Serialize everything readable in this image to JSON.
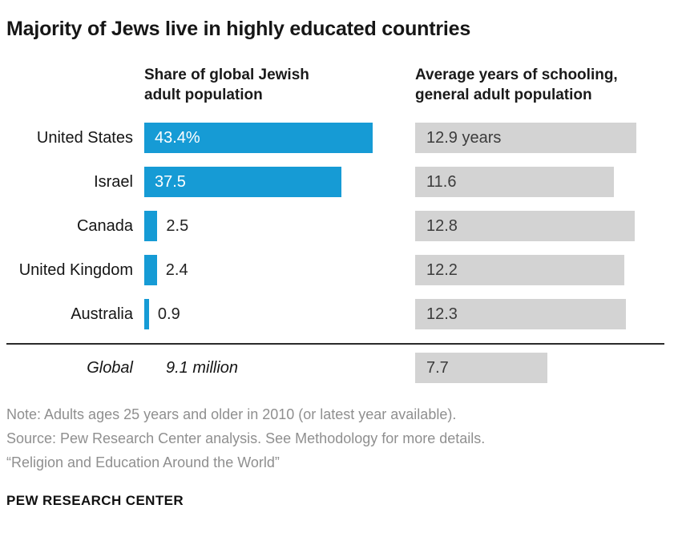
{
  "title": "Majority of Jews live in highly educated countries",
  "columns": {
    "left_header": "Share of global Jewish adult population",
    "right_header": "Average years of schooling, general adult population"
  },
  "chart_data": {
    "type": "bar",
    "categories": [
      "United States",
      "Israel",
      "Canada",
      "United Kingdom",
      "Australia"
    ],
    "series": [
      {
        "name": "Share of global Jewish adult population (%)",
        "values": [
          43.4,
          37.5,
          2.5,
          2.4,
          0.9
        ],
        "labels": [
          "43.4%",
          "37.5",
          "2.5",
          "2.4",
          "0.9"
        ],
        "color": "#169bd5"
      },
      {
        "name": "Average years of schooling, general adult population",
        "values": [
          12.9,
          11.6,
          12.8,
          12.2,
          12.3
        ],
        "labels": [
          "12.9 years",
          "11.6",
          "12.8",
          "12.2",
          "12.3"
        ],
        "color": "#d3d3d3"
      }
    ],
    "global_row": {
      "label": "Global",
      "share_label": "9.1 million",
      "schooling_value": 7.7,
      "schooling_label": "7.7"
    },
    "xlim_share": [
      0,
      43.4
    ],
    "xlim_schooling": [
      0,
      12.9
    ],
    "grid": "off",
    "legend": "none"
  },
  "notes": [
    "Note: Adults ages 25 years and older in 2010 (or latest year available).",
    "Source: Pew Research Center analysis. See Methodology for more details.",
    "“Religion and Education Around the World”"
  ],
  "footer": "PEW RESEARCH CENTER",
  "colors": {
    "share_bar": "#169bd5",
    "schooling_bar": "#d3d3d3",
    "note_text": "#8f8f8f",
    "title_text": "#161616"
  }
}
